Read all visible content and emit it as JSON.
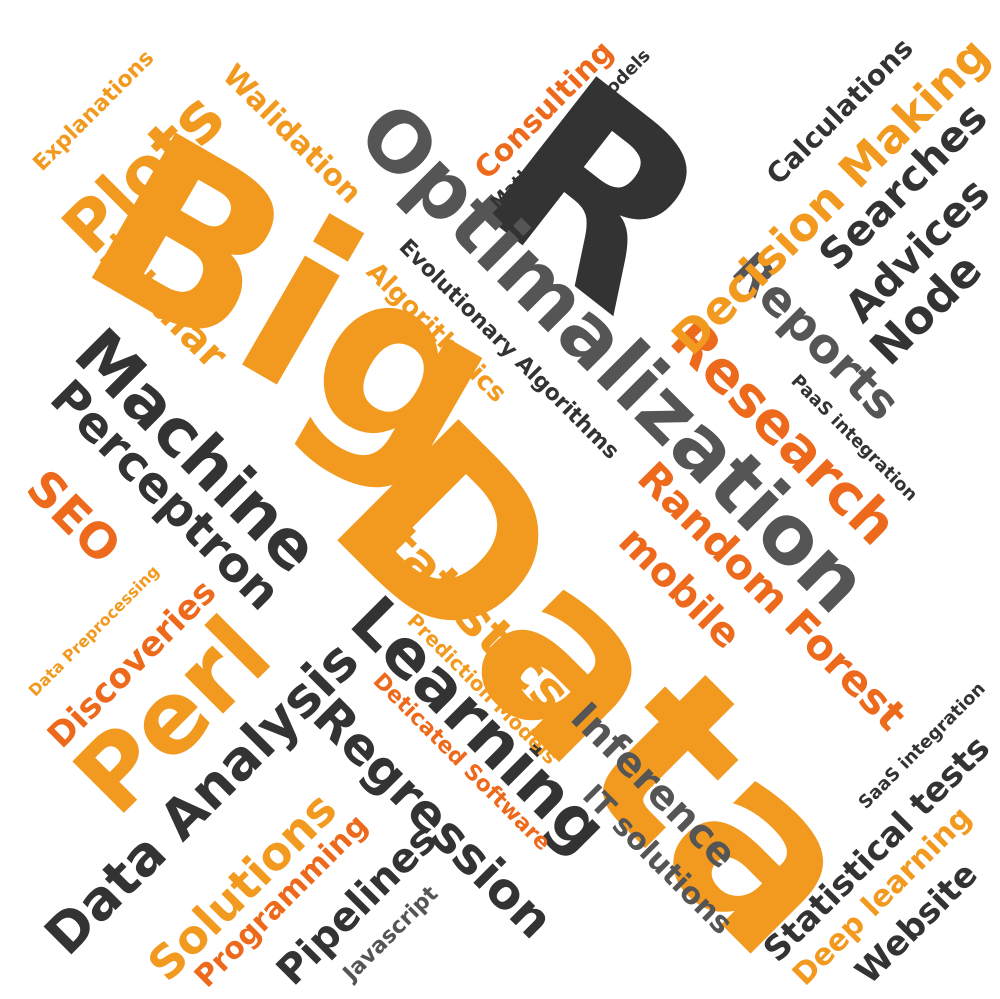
{
  "palette": {
    "orange": "#f29a1f",
    "dark_orange": "#ed6a1c",
    "dark_gray": "#333333",
    "mid_gray": "#555555"
  },
  "words": {
    "big": "Big",
    "data": "Data",
    "r": "R",
    "optimalization": "Optimalization",
    "machine": "Machine",
    "learning": "Learning",
    "perceptron": "Perceptron",
    "perl": "Perl",
    "statistics": "Statistics",
    "data_analysis": "Data Analysis",
    "regression": "Regression",
    "research": "Research",
    "reports": "Reports",
    "decision_making": "Decision Making",
    "plots": "Plots",
    "tabular": "Tabular",
    "seo": "SEO",
    "discoveries": "Discoveries",
    "solutions": "Solutions",
    "programming": "Programming",
    "pipelines": "Pipelines",
    "javascript": "Javascript",
    "inference": "Inference",
    "it_solutions": "IT solutions",
    "statistical_tests": "Statistical tests",
    "deep_learning": "Deep learning",
    "website": "Website",
    "saas_integration": "SaaS integration",
    "paas_integration": "PaaS integration",
    "random_forest": "Random Forest",
    "mobile": "mobile",
    "searches": "Searches",
    "advices": "Advices",
    "node": "Node",
    "calculations": "Calculations",
    "consulting": "Consulting",
    "mathematical_models": "Mathematical Models",
    "evolutionary_algorithms": "Evolutionary Algorithms",
    "algorithmics": "Algorithmics",
    "walidation": "Walidation",
    "explanations": "Explanations",
    "data_preprocessing": "Data Preprocessing",
    "prediction_models": "Prediction Models",
    "deticated_software": "Deticated Software"
  }
}
